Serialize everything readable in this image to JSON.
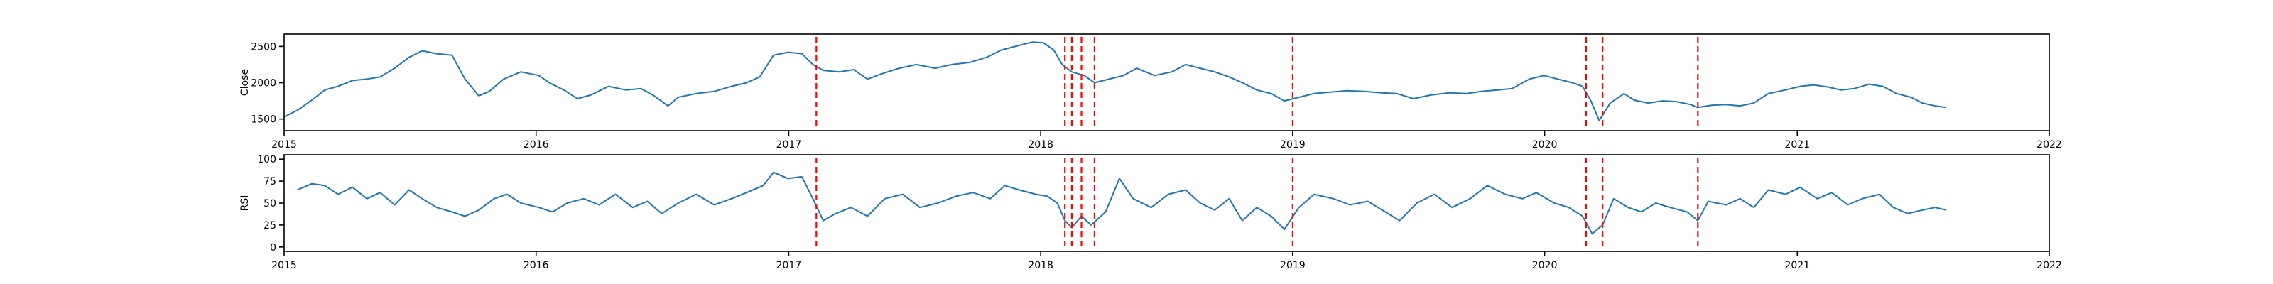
{
  "chart_data": [
    {
      "type": "line",
      "ylabel": "Close",
      "xlim": [
        "2015-01-01",
        "2022-01-01"
      ],
      "ylim": [
        1340,
        2670
      ],
      "x_ticks": [
        "2015",
        "2016",
        "2017",
        "2018",
        "2019",
        "2020",
        "2021",
        "2022"
      ],
      "y_ticks": [
        1500,
        2000,
        2500
      ],
      "series": [
        {
          "color": "#1f77b4",
          "points": [
            [
              "2015-01-01",
              1530
            ],
            [
              "2015-01-20",
              1620
            ],
            [
              "2015-02-10",
              1760
            ],
            [
              "2015-03-01",
              1900
            ],
            [
              "2015-03-20",
              1950
            ],
            [
              "2015-04-10",
              2030
            ],
            [
              "2015-05-01",
              2050
            ],
            [
              "2015-05-20",
              2080
            ],
            [
              "2015-06-10",
              2200
            ],
            [
              "2015-07-01",
              2350
            ],
            [
              "2015-07-20",
              2440
            ],
            [
              "2015-08-10",
              2400
            ],
            [
              "2015-09-01",
              2380
            ],
            [
              "2015-09-20",
              2050
            ],
            [
              "2015-10-10",
              1820
            ],
            [
              "2015-10-25",
              1880
            ],
            [
              "2015-11-15",
              2050
            ],
            [
              "2015-12-10",
              2150
            ],
            [
              "2016-01-05",
              2100
            ],
            [
              "2016-01-20",
              2000
            ],
            [
              "2016-02-10",
              1900
            ],
            [
              "2016-03-01",
              1780
            ],
            [
              "2016-03-20",
              1830
            ],
            [
              "2016-04-15",
              1950
            ],
            [
              "2016-05-10",
              1900
            ],
            [
              "2016-06-01",
              1920
            ],
            [
              "2016-06-20",
              1820
            ],
            [
              "2016-07-10",
              1680
            ],
            [
              "2016-07-25",
              1800
            ],
            [
              "2016-08-20",
              1850
            ],
            [
              "2016-09-15",
              1880
            ],
            [
              "2016-10-10",
              1950
            ],
            [
              "2016-11-01",
              2000
            ],
            [
              "2016-11-20",
              2080
            ],
            [
              "2016-12-10",
              2380
            ],
            [
              "2016-12-31",
              2420
            ],
            [
              "2017-01-20",
              2400
            ],
            [
              "2017-02-05",
              2250
            ],
            [
              "2017-02-20",
              2170
            ],
            [
              "2017-03-15",
              2150
            ],
            [
              "2017-04-05",
              2180
            ],
            [
              "2017-04-25",
              2050
            ],
            [
              "2017-05-15",
              2120
            ],
            [
              "2017-06-10",
              2200
            ],
            [
              "2017-07-05",
              2250
            ],
            [
              "2017-08-01",
              2200
            ],
            [
              "2017-08-25",
              2250
            ],
            [
              "2017-09-20",
              2280
            ],
            [
              "2017-10-15",
              2350
            ],
            [
              "2017-11-05",
              2450
            ],
            [
              "2017-11-25",
              2500
            ],
            [
              "2017-12-20",
              2560
            ],
            [
              "2018-01-05",
              2550
            ],
            [
              "2018-01-20",
              2450
            ],
            [
              "2018-02-01",
              2250
            ],
            [
              "2018-02-15",
              2150
            ],
            [
              "2018-03-05",
              2100
            ],
            [
              "2018-03-20",
              2000
            ],
            [
              "2018-04-10",
              2050
            ],
            [
              "2018-05-01",
              2100
            ],
            [
              "2018-05-20",
              2200
            ],
            [
              "2018-06-15",
              2100
            ],
            [
              "2018-07-10",
              2150
            ],
            [
              "2018-07-30",
              2250
            ],
            [
              "2018-08-20",
              2200
            ],
            [
              "2018-09-10",
              2150
            ],
            [
              "2018-10-01",
              2080
            ],
            [
              "2018-10-20",
              2000
            ],
            [
              "2018-11-10",
              1900
            ],
            [
              "2018-12-01",
              1850
            ],
            [
              "2018-12-20",
              1750
            ],
            [
              "2019-01-10",
              1800
            ],
            [
              "2019-02-01",
              1850
            ],
            [
              "2019-02-25",
              1870
            ],
            [
              "2019-03-20",
              1890
            ],
            [
              "2019-04-15",
              1880
            ],
            [
              "2019-05-10",
              1860
            ],
            [
              "2019-06-01",
              1850
            ],
            [
              "2019-06-25",
              1780
            ],
            [
              "2019-07-20",
              1830
            ],
            [
              "2019-08-15",
              1860
            ],
            [
              "2019-09-10",
              1850
            ],
            [
              "2019-10-01",
              1880
            ],
            [
              "2019-10-25",
              1900
            ],
            [
              "2019-11-15",
              1920
            ],
            [
              "2019-12-10",
              2050
            ],
            [
              "2019-12-31",
              2100
            ],
            [
              "2020-01-20",
              2050
            ],
            [
              "2020-02-10",
              2000
            ],
            [
              "2020-02-25",
              1950
            ],
            [
              "2020-03-08",
              1750
            ],
            [
              "2020-03-20",
              1480
            ],
            [
              "2020-04-05",
              1720
            ],
            [
              "2020-04-25",
              1850
            ],
            [
              "2020-05-10",
              1760
            ],
            [
              "2020-05-30",
              1720
            ],
            [
              "2020-06-20",
              1750
            ],
            [
              "2020-07-10",
              1740
            ],
            [
              "2020-07-30",
              1700
            ],
            [
              "2020-08-10",
              1660
            ],
            [
              "2020-08-30",
              1690
            ],
            [
              "2020-09-20",
              1700
            ],
            [
              "2020-10-10",
              1680
            ],
            [
              "2020-10-30",
              1720
            ],
            [
              "2020-11-20",
              1850
            ],
            [
              "2020-12-15",
              1900
            ],
            [
              "2021-01-05",
              1950
            ],
            [
              "2021-01-25",
              1970
            ],
            [
              "2021-02-15",
              1940
            ],
            [
              "2021-03-05",
              1900
            ],
            [
              "2021-03-25",
              1920
            ],
            [
              "2021-04-15",
              1980
            ],
            [
              "2021-05-05",
              1950
            ],
            [
              "2021-05-25",
              1850
            ],
            [
              "2021-06-15",
              1800
            ],
            [
              "2021-07-01",
              1720
            ],
            [
              "2021-07-20",
              1680
            ],
            [
              "2021-08-05",
              1660
            ]
          ]
        }
      ]
    },
    {
      "type": "line",
      "ylabel": "RSI",
      "xlim": [
        "2015-01-01",
        "2022-01-01"
      ],
      "ylim": [
        -5,
        105
      ],
      "x_ticks": [
        "2015",
        "2016",
        "2017",
        "2018",
        "2019",
        "2020",
        "2021",
        "2022"
      ],
      "y_ticks": [
        0,
        25,
        50,
        75,
        100
      ],
      "series": [
        {
          "color": "#1f77b4",
          "points": [
            [
              "2015-01-20",
              65
            ],
            [
              "2015-02-10",
              72
            ],
            [
              "2015-03-01",
              70
            ],
            [
              "2015-03-20",
              60
            ],
            [
              "2015-04-10",
              68
            ],
            [
              "2015-05-01",
              55
            ],
            [
              "2015-05-20",
              62
            ],
            [
              "2015-06-10",
              48
            ],
            [
              "2015-07-01",
              65
            ],
            [
              "2015-07-20",
              55
            ],
            [
              "2015-08-10",
              45
            ],
            [
              "2015-09-01",
              40
            ],
            [
              "2015-09-20",
              35
            ],
            [
              "2015-10-10",
              42
            ],
            [
              "2015-11-01",
              55
            ],
            [
              "2015-11-20",
              60
            ],
            [
              "2015-12-10",
              50
            ],
            [
              "2016-01-05",
              45
            ],
            [
              "2016-01-25",
              40
            ],
            [
              "2016-02-15",
              50
            ],
            [
              "2016-03-10",
              55
            ],
            [
              "2016-04-01",
              48
            ],
            [
              "2016-04-25",
              60
            ],
            [
              "2016-05-20",
              45
            ],
            [
              "2016-06-10",
              52
            ],
            [
              "2016-07-01",
              38
            ],
            [
              "2016-07-25",
              50
            ],
            [
              "2016-08-20",
              60
            ],
            [
              "2016-09-15",
              48
            ],
            [
              "2016-10-10",
              55
            ],
            [
              "2016-11-01",
              62
            ],
            [
              "2016-11-25",
              70
            ],
            [
              "2016-12-10",
              85
            ],
            [
              "2016-12-31",
              78
            ],
            [
              "2017-01-20",
              80
            ],
            [
              "2017-02-05",
              55
            ],
            [
              "2017-02-20",
              30
            ],
            [
              "2017-03-10",
              38
            ],
            [
              "2017-04-01",
              45
            ],
            [
              "2017-04-25",
              35
            ],
            [
              "2017-05-20",
              55
            ],
            [
              "2017-06-15",
              60
            ],
            [
              "2017-07-10",
              45
            ],
            [
              "2017-08-05",
              50
            ],
            [
              "2017-09-01",
              58
            ],
            [
              "2017-09-25",
              62
            ],
            [
              "2017-10-20",
              55
            ],
            [
              "2017-11-10",
              70
            ],
            [
              "2017-12-01",
              65
            ],
            [
              "2017-12-25",
              60
            ],
            [
              "2018-01-10",
              58
            ],
            [
              "2018-01-25",
              50
            ],
            [
              "2018-02-05",
              30
            ],
            [
              "2018-02-15",
              22
            ],
            [
              "2018-03-01",
              35
            ],
            [
              "2018-03-15",
              25
            ],
            [
              "2018-04-05",
              40
            ],
            [
              "2018-04-25",
              78
            ],
            [
              "2018-05-15",
              55
            ],
            [
              "2018-06-10",
              45
            ],
            [
              "2018-07-05",
              60
            ],
            [
              "2018-07-30",
              65
            ],
            [
              "2018-08-20",
              50
            ],
            [
              "2018-09-10",
              42
            ],
            [
              "2018-10-01",
              55
            ],
            [
              "2018-10-20",
              30
            ],
            [
              "2018-11-10",
              45
            ],
            [
              "2018-12-01",
              35
            ],
            [
              "2018-12-20",
              20
            ],
            [
              "2019-01-10",
              45
            ],
            [
              "2019-02-01",
              60
            ],
            [
              "2019-03-01",
              55
            ],
            [
              "2019-03-25",
              48
            ],
            [
              "2019-04-20",
              52
            ],
            [
              "2019-05-15",
              40
            ],
            [
              "2019-06-05",
              30
            ],
            [
              "2019-06-30",
              50
            ],
            [
              "2019-07-25",
              60
            ],
            [
              "2019-08-20",
              45
            ],
            [
              "2019-09-15",
              55
            ],
            [
              "2019-10-10",
              70
            ],
            [
              "2019-11-05",
              60
            ],
            [
              "2019-11-30",
              55
            ],
            [
              "2019-12-20",
              62
            ],
            [
              "2020-01-15",
              50
            ],
            [
              "2020-02-05",
              45
            ],
            [
              "2020-02-25",
              35
            ],
            [
              "2020-03-10",
              15
            ],
            [
              "2020-03-25",
              25
            ],
            [
              "2020-04-10",
              55
            ],
            [
              "2020-05-01",
              45
            ],
            [
              "2020-05-20",
              40
            ],
            [
              "2020-06-10",
              50
            ],
            [
              "2020-07-01",
              45
            ],
            [
              "2020-07-25",
              40
            ],
            [
              "2020-08-10",
              30
            ],
            [
              "2020-08-25",
              52
            ],
            [
              "2020-09-20",
              48
            ],
            [
              "2020-10-10",
              55
            ],
            [
              "2020-10-30",
              45
            ],
            [
              "2020-11-20",
              65
            ],
            [
              "2020-12-15",
              60
            ],
            [
              "2021-01-05",
              68
            ],
            [
              "2021-01-30",
              55
            ],
            [
              "2021-02-20",
              62
            ],
            [
              "2021-03-15",
              48
            ],
            [
              "2021-04-05",
              55
            ],
            [
              "2021-04-30",
              60
            ],
            [
              "2021-05-20",
              45
            ],
            [
              "2021-06-10",
              38
            ],
            [
              "2021-07-01",
              42
            ],
            [
              "2021-07-20",
              45
            ],
            [
              "2021-08-05",
              42
            ]
          ]
        }
      ]
    }
  ],
  "event_markers": {
    "color": "#ff0000",
    "style": "dashed",
    "dates": [
      "2017-02-10",
      "2018-02-05",
      "2018-02-15",
      "2018-03-01",
      "2018-03-20",
      "2019-01-01",
      "2020-03-01",
      "2020-03-25",
      "2020-08-10"
    ]
  }
}
